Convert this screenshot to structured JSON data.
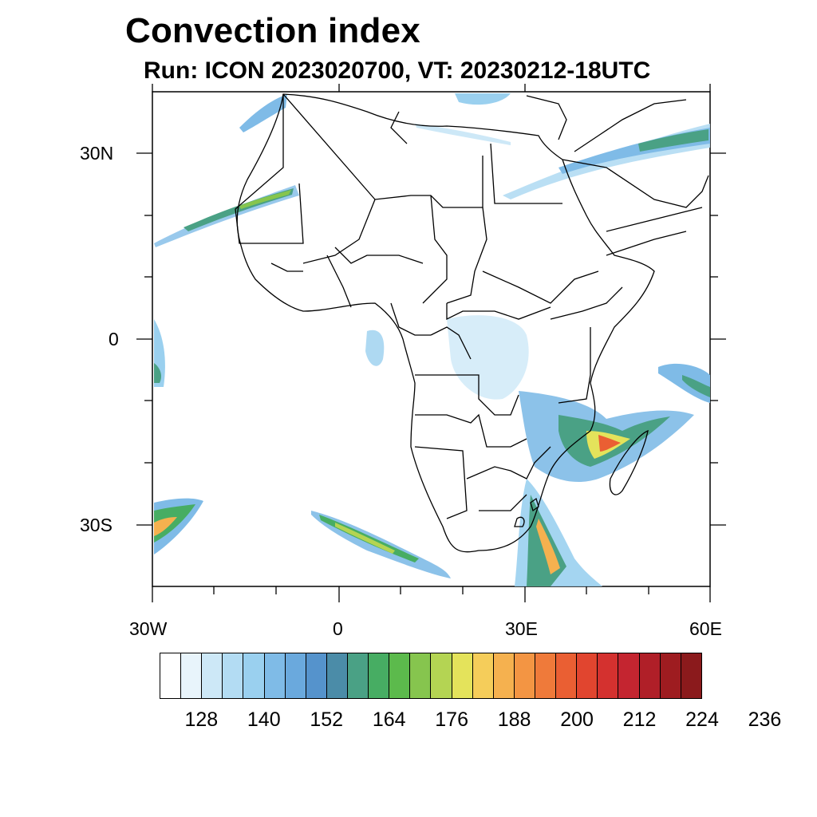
{
  "title": "Convection index",
  "subtitle": "Run: ICON 2023020700,  VT: 20230212-18UTC",
  "axes": {
    "lat_labels": [
      "30N",
      "0",
      "30S"
    ],
    "lon_labels": [
      "30W",
      "0",
      "30E",
      "60E"
    ]
  },
  "colorbar": {
    "labels": [
      "128",
      "140",
      "152",
      "164",
      "176",
      "188",
      "200",
      "212",
      "224",
      "236"
    ],
    "colors": [
      "#ffffff",
      "#e8f4fb",
      "#cde8f7",
      "#b3dcf3",
      "#9ad0ef",
      "#7fbbe7",
      "#6aa9dd",
      "#5593cc",
      "#4b8ca8",
      "#4aa185",
      "#47ad63",
      "#5cba4c",
      "#86c54e",
      "#b4d453",
      "#e4e35b",
      "#f5cd5a",
      "#f5b14f",
      "#f39543",
      "#ef7a3a",
      "#ea5f33",
      "#e1452f",
      "#d4312f",
      "#c42530",
      "#b01f28",
      "#9e1c20",
      "#8b1a1c"
    ]
  }
}
